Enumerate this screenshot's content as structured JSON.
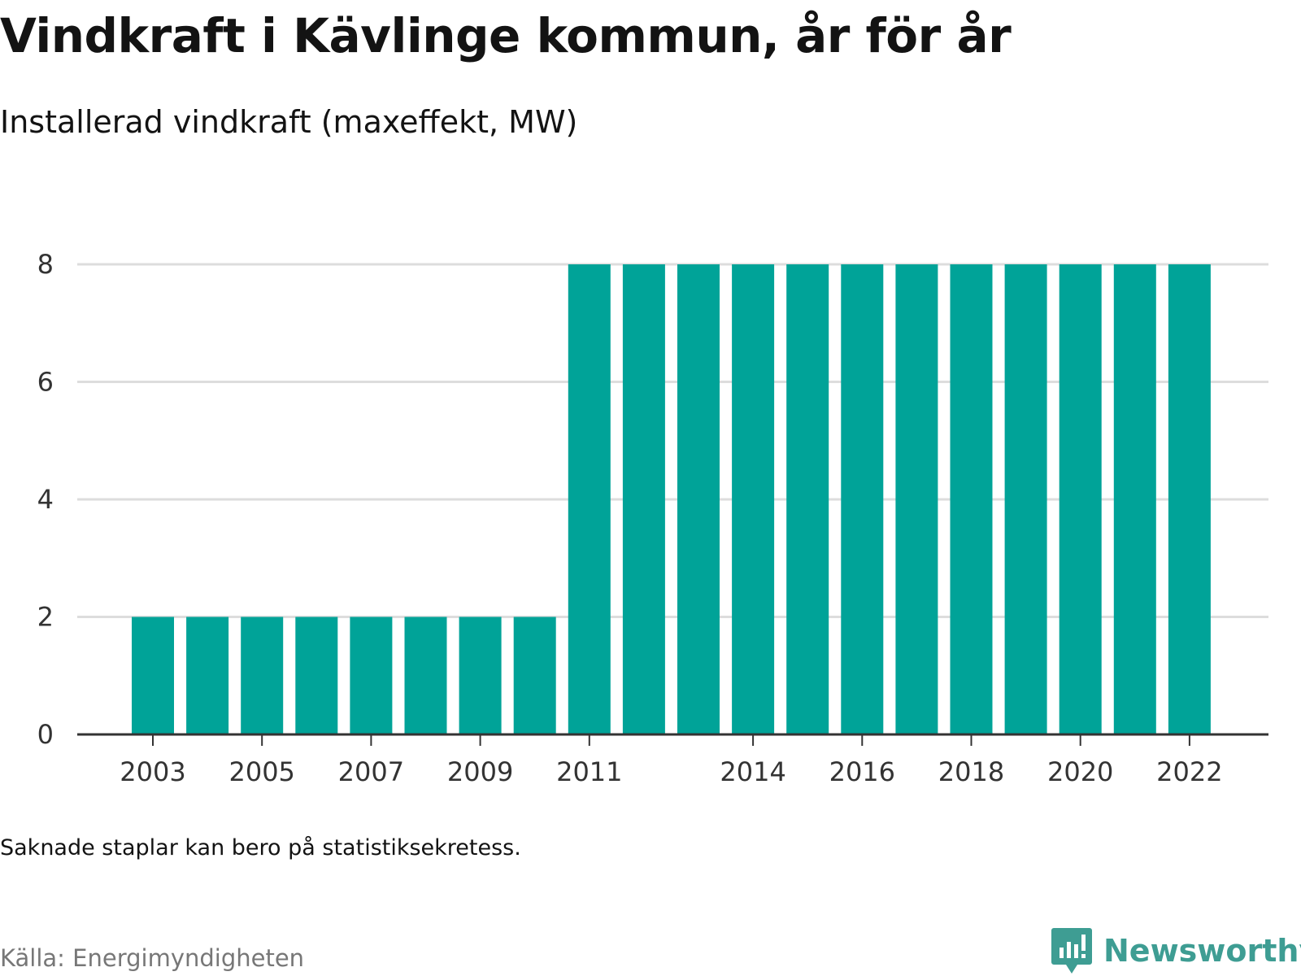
{
  "header": {
    "title": "Vindkraft i Kävlinge kommun, år för år",
    "subtitle": "Installerad vindkraft (maxeffekt, MW)"
  },
  "footer": {
    "note": "Saknade staplar kan bero på statistiksekretess.",
    "source": "Källa: Energimyndigheten",
    "brand": "Newsworthy"
  },
  "colors": {
    "bar": "#00a398",
    "grid": "#dddddd",
    "axis": "#333333",
    "brand": "#3e9d93"
  },
  "icons": {
    "brand_logo": "newsworthy-logo-icon"
  },
  "chart_data": {
    "type": "bar",
    "title": "Vindkraft i Kävlinge kommun, år för år",
    "subtitle": "Installerad vindkraft (maxeffekt, MW)",
    "categories": [
      2003,
      2004,
      2005,
      2006,
      2007,
      2008,
      2009,
      2010,
      2011,
      2012,
      2013,
      2014,
      2015,
      2016,
      2017,
      2018,
      2019,
      2020,
      2021,
      2022
    ],
    "values": [
      2,
      2,
      2,
      2,
      2,
      2,
      2,
      2,
      8,
      8,
      8,
      8,
      8,
      8,
      8,
      8,
      8,
      8,
      8,
      8
    ],
    "x_tick_labels": [
      "2003",
      "2005",
      "2007",
      "2009",
      "2011",
      "2014",
      "2016",
      "2018",
      "2020",
      "2022"
    ],
    "y_ticks": [
      0,
      2,
      4,
      6,
      8
    ],
    "ylim": [
      0,
      8
    ],
    "xlabel": "",
    "ylabel": "",
    "grid": true
  }
}
